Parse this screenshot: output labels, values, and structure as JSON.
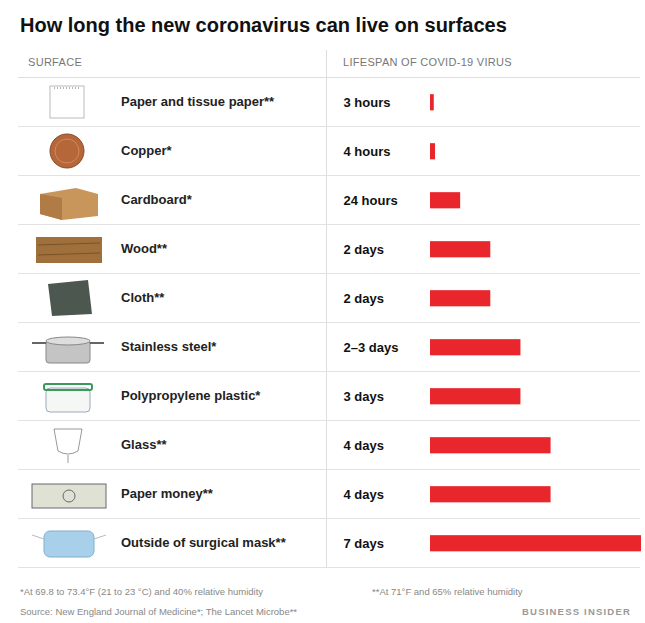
{
  "chart_data": {
    "type": "bar",
    "orientation": "horizontal",
    "title": "How long the new coronavirus can live on surfaces",
    "column_headers": [
      "SURFACE",
      "LIFESPAN OF COVID-19 VIRUS"
    ],
    "categories": [
      "Paper and tissue paper**",
      "Copper*",
      "Cardboard*",
      "Wood**",
      "Cloth**",
      "Stainless steel*",
      "Polypropylene plastic*",
      "Glass**",
      "Paper money**",
      "Outside of surgical mask**"
    ],
    "values": [
      3,
      4,
      24,
      48,
      48,
      72,
      72,
      96,
      96,
      168
    ],
    "value_labels": [
      "3 hours",
      "4 hours",
      "24 hours",
      "2 days",
      "2 days",
      "2–3 days",
      "3 days",
      "4 days",
      "4 days",
      "7 days"
    ],
    "data_labels": true,
    "tick_labels": false,
    "grid": false,
    "color": "#e8262b",
    "xlim": [
      0,
      168
    ],
    "footnotes": [
      "*At 69.8 to 73.4°F (21 to 23 °C) and 40% relative humidity",
      "**At 71°F and 65% relative humidity"
    ],
    "source": "Source: New England Journal of Medicine*; The Lancet Microbe**",
    "credit": "BUSINESS INSIDER"
  }
}
